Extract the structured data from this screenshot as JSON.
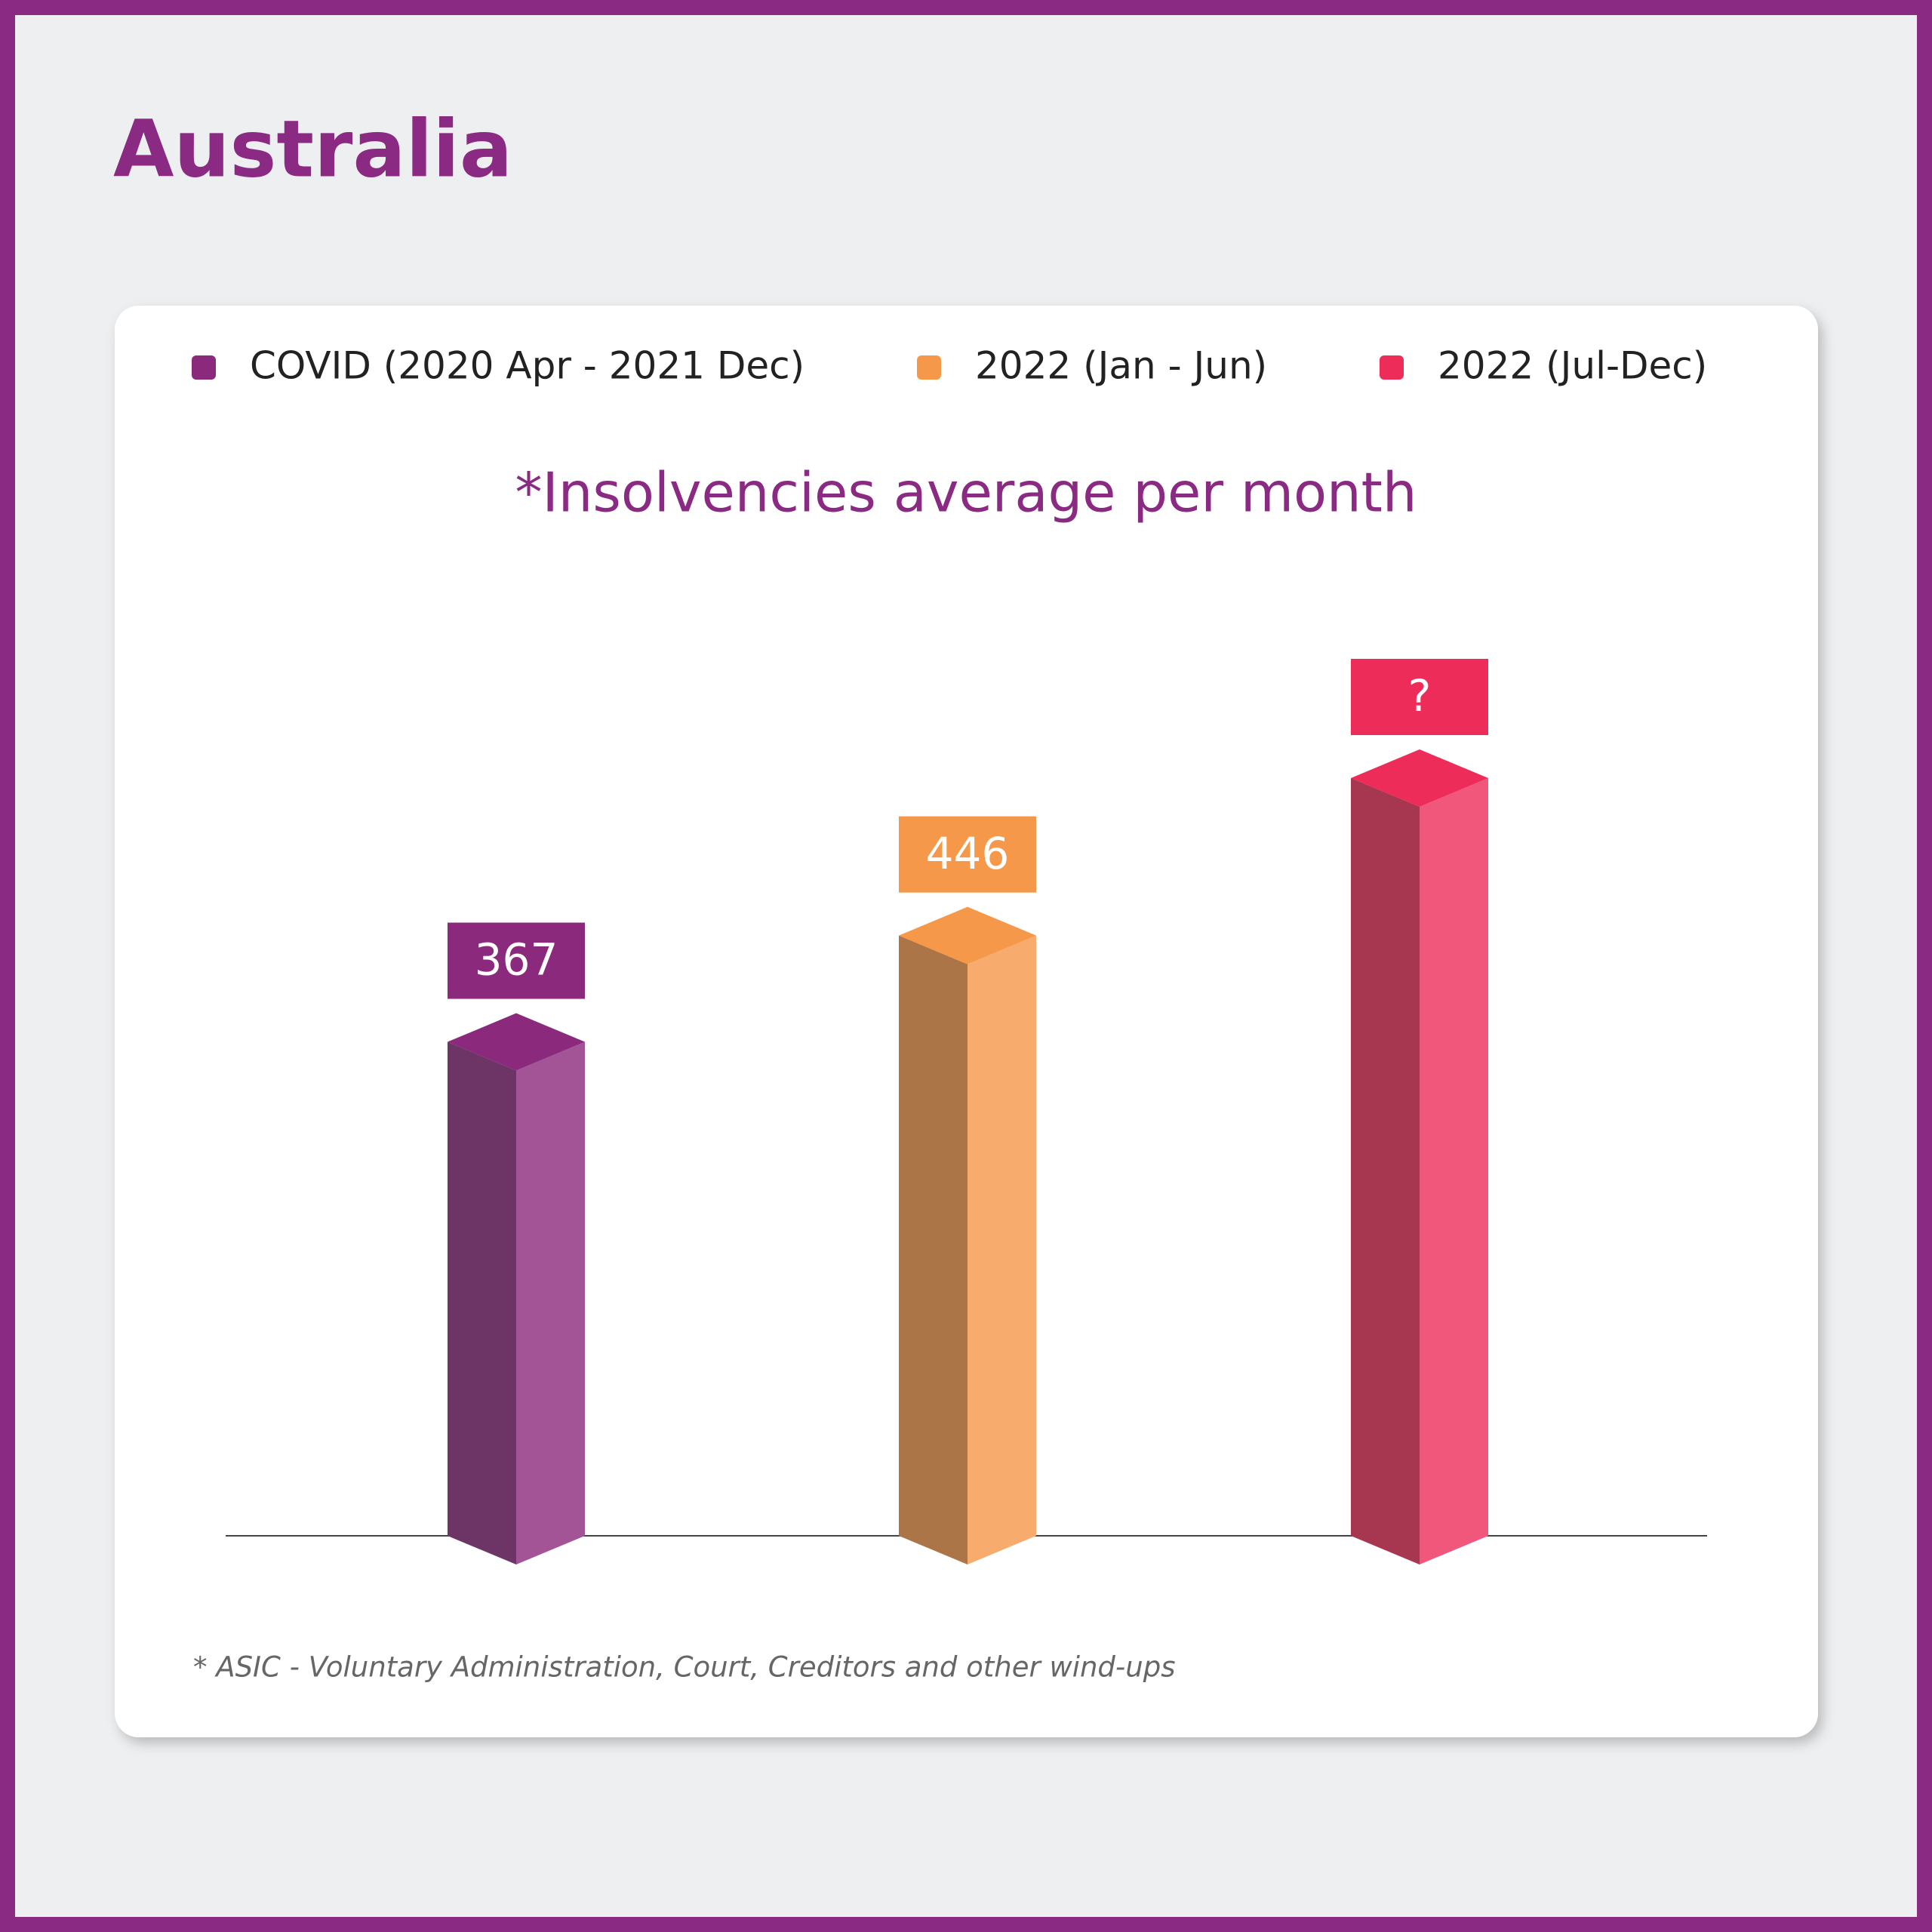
{
  "heading": "Australia",
  "chart_data": {
    "type": "bar3d",
    "title": "*Insolvencies average per month",
    "series": [
      {
        "name": "COVID (2020 Apr - 2021 Dec)",
        "color": "#8b2a7d",
        "values": [
          367
        ],
        "value_labels": [
          "367"
        ]
      },
      {
        "name": "2022 (Jan - Jun)",
        "color": "#f6984a",
        "values": [
          446
        ],
        "value_labels": [
          "446"
        ]
      },
      {
        "name": "2022 (Jul-Dec)",
        "color": "#ee2c5a",
        "values": [
          563
        ],
        "value_labels": [
          "?"
        ]
      }
    ]
  },
  "footnote": "*  ASIC - Voluntary Administration, Court, Creditors and other wind-ups"
}
